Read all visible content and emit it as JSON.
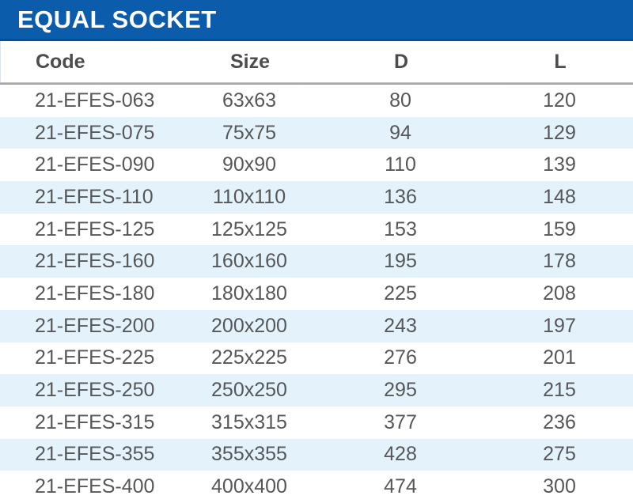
{
  "title_bar": {
    "title": "EQUAL SOCKET"
  },
  "colors": {
    "banner_blue": "#0b5cab",
    "banner_edge": "#084e92",
    "stripe_blue": "#e4f2fb",
    "separator_gray": "#8f8f8f",
    "header_text": "#4b4c4e",
    "data_text": "#565759"
  },
  "table": {
    "columns": [
      "Code",
      "Size",
      "D",
      "L"
    ],
    "rows": [
      [
        "21-EFES-063",
        "63x63",
        "80",
        "120"
      ],
      [
        "21-EFES-075",
        "75x75",
        "94",
        "129"
      ],
      [
        "21-EFES-090",
        "90x90",
        "110",
        "139"
      ],
      [
        "21-EFES-110",
        "110x110",
        "136",
        "148"
      ],
      [
        "21-EFES-125",
        "125x125",
        "153",
        "159"
      ],
      [
        "21-EFES-160",
        "160x160",
        "195",
        "178"
      ],
      [
        "21-EFES-180",
        "180x180",
        "225",
        "208"
      ],
      [
        "21-EFES-200",
        "200x200",
        "243",
        "197"
      ],
      [
        "21-EFES-225",
        "225x225",
        "276",
        "201"
      ],
      [
        "21-EFES-250",
        "250x250",
        "295",
        "215"
      ],
      [
        "21-EFES-315",
        "315x315",
        "377",
        "236"
      ],
      [
        "21-EFES-355",
        "355x355",
        "428",
        "275"
      ],
      [
        "21-EFES-400",
        "400x400",
        "474",
        "300"
      ]
    ]
  }
}
